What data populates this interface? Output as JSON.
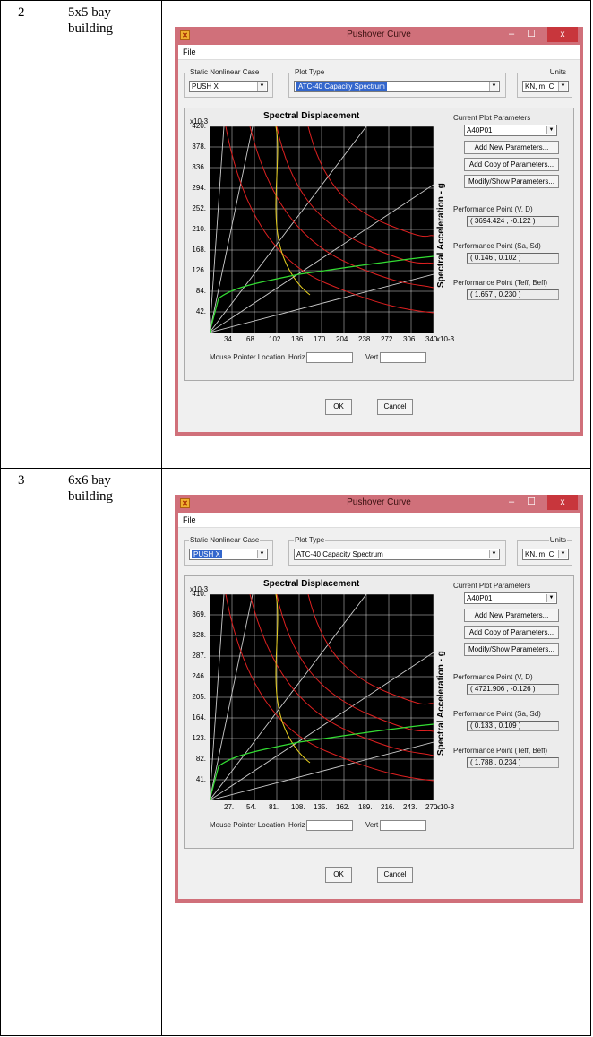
{
  "rows": [
    {
      "number": "2",
      "description_line1": "5x5 bay",
      "description_line2": "building",
      "window": {
        "title": "Pushover Curve",
        "app_icon": "sap-app-icon",
        "menu": [
          "File"
        ],
        "static_case_label": "Static Nonlinear Case",
        "static_case_value": "PUSH X",
        "plot_type_label": "Plot Type",
        "plot_type_value": "ATC-40 Capacity Spectrum",
        "units_label": "Units",
        "units_value": "KN, m, C",
        "x_axis_title": "Spectral Displacement",
        "y_axis_title": "Spectral Acceleration - g",
        "y_multiplier": "x10-3",
        "x_multiplier": "x10-3",
        "y_ticks": [
          "420.",
          "378.",
          "336.",
          "294.",
          "252.",
          "210.",
          "168.",
          "126.",
          "84.",
          "42."
        ],
        "x_ticks": [
          "34.",
          "68.",
          "102.",
          "136.",
          "170.",
          "204.",
          "238.",
          "272.",
          "306.",
          "340."
        ],
        "current_params_label": "Current Plot Parameters",
        "current_params_value": "A40P01",
        "add_new_label": "Add New Parameters...",
        "add_copy_label": "Add Copy of Parameters...",
        "modify_label": "Modify/Show Parameters...",
        "pp_vd_label": "Performance Point (V, D)",
        "pp_vd_value": "( 3694.424 , -0.122 )",
        "pp_sasd_label": "Performance Point (Sa, Sd)",
        "pp_sasd_value": "( 0.146 , 0.102 )",
        "pp_teff_label": "Performance Point (Teff, Beff)",
        "pp_teff_value": "( 1.657 , 0.230 )",
        "mouse_label": "Mouse Pointer Location",
        "horiz_label": "Horiz",
        "vert_label": "Vert",
        "ok_label": "OK",
        "cancel_label": "Cancel"
      }
    },
    {
      "number": "3",
      "description_line1": "6x6 bay",
      "description_line2": "building",
      "window": {
        "title": "Pushover Curve",
        "app_icon": "sap-app-icon",
        "menu": [
          "File"
        ],
        "static_case_label": "Static Nonlinear Case",
        "static_case_value": "PUSH X",
        "plot_type_label": "Plot Type",
        "plot_type_value": "ATC-40 Capacity Spectrum",
        "units_label": "Units",
        "units_value": "KN, m, C",
        "x_axis_title": "Spectral Displacement",
        "y_axis_title": "Spectral Acceleration - g",
        "y_multiplier": "x10-3",
        "x_multiplier": "x10-3",
        "y_ticks": [
          "410.",
          "369.",
          "328.",
          "287.",
          "246.",
          "205.",
          "164.",
          "123.",
          "82.",
          "41."
        ],
        "x_ticks": [
          "27.",
          "54.",
          "81.",
          "108.",
          "135.",
          "162.",
          "189.",
          "216.",
          "243.",
          "270."
        ],
        "current_params_label": "Current Plot Parameters",
        "current_params_value": "A40P01",
        "add_new_label": "Add New Parameters...",
        "add_copy_label": "Add Copy of Parameters...",
        "modify_label": "Modify/Show Parameters...",
        "pp_vd_label": "Performance Point (V, D)",
        "pp_vd_value": "( 4721.906 , -0.126 )",
        "pp_sasd_label": "Performance Point (Sa, Sd)",
        "pp_sasd_value": "( 0.133 , 0.109 )",
        "pp_teff_label": "Performance Point (Teff, Beff)",
        "pp_teff_value": "( 1.788 , 0.234 )",
        "mouse_label": "Mouse Pointer Location",
        "horiz_label": "Horiz",
        "vert_label": "Vert",
        "ok_label": "OK",
        "cancel_label": "Cancel"
      }
    }
  ],
  "colors": {
    "title_bar": "#d0707a",
    "close_button": "#c8363c",
    "plot_background": "#000000",
    "grid": "#ffffff",
    "capacity_curve": "#33dd33",
    "demand_curves": "#dd2020",
    "performance_trace": "#e8d020",
    "period_lines": "#cccccc",
    "selection": "#3366cc"
  }
}
